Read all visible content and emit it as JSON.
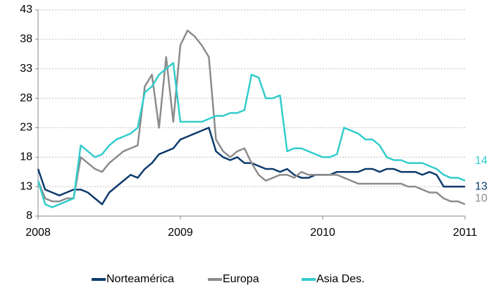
{
  "chart_data": {
    "type": "line",
    "x": [
      2008,
      2008.05,
      2008.1,
      2008.15,
      2008.2,
      2008.25,
      2008.3,
      2008.35,
      2008.4,
      2008.45,
      2008.5,
      2008.55,
      2008.6,
      2008.65,
      2008.7,
      2008.75,
      2008.8,
      2008.85,
      2008.9,
      2008.95,
      2009,
      2009.05,
      2009.1,
      2009.15,
      2009.2,
      2009.25,
      2009.3,
      2009.35,
      2009.4,
      2009.45,
      2009.5,
      2009.55,
      2009.6,
      2009.65,
      2009.7,
      2009.75,
      2009.8,
      2009.85,
      2009.9,
      2009.95,
      2010,
      2010.05,
      2010.1,
      2010.15,
      2010.2,
      2010.25,
      2010.3,
      2010.35,
      2010.4,
      2010.45,
      2010.5,
      2010.55,
      2010.6,
      2010.65,
      2010.7,
      2010.75,
      2010.8,
      2010.85,
      2010.9,
      2010.95,
      2011
    ],
    "series": [
      {
        "name": "Norteamérica",
        "color": "#0d3a6b",
        "values": [
          16,
          12.5,
          12,
          11.5,
          12,
          12.5,
          12.5,
          12,
          11,
          10,
          12,
          13,
          14,
          15,
          14.5,
          16,
          17,
          18.5,
          19,
          19.5,
          21,
          21.5,
          22,
          22.5,
          23,
          19,
          18,
          17.5,
          18,
          17,
          17,
          16.5,
          16,
          16,
          15.5,
          16,
          15,
          14.5,
          14.5,
          15,
          15,
          15,
          15.5,
          15.5,
          15.5,
          15.5,
          16,
          16,
          15.5,
          16,
          16,
          15.5,
          15.5,
          15.5,
          15,
          15.5,
          15,
          13,
          13,
          13,
          13
        ]
      },
      {
        "name": "Europa",
        "color": "#8c8c8c",
        "values": [
          14,
          11,
          10.5,
          10.5,
          11,
          11,
          18,
          17,
          16,
          15.5,
          17,
          18,
          19,
          19.5,
          20,
          30,
          32,
          23,
          35,
          24,
          37,
          39.5,
          38.5,
          37,
          35,
          21,
          19,
          18,
          19,
          19.5,
          17,
          15,
          14,
          14.5,
          15,
          15,
          14.5,
          15.5,
          15,
          15,
          15,
          15,
          15,
          14.5,
          14,
          13.5,
          13.5,
          13.5,
          13.5,
          13.5,
          13.5,
          13.5,
          13,
          13,
          12.5,
          12,
          12,
          11,
          10.5,
          10.5,
          10
        ]
      },
      {
        "name": "Asia Des.",
        "color": "#33cccc",
        "values": [
          14,
          10,
          9.5,
          10,
          10.5,
          11,
          20,
          19,
          18,
          18.5,
          20,
          21,
          21.5,
          22,
          23,
          29,
          30,
          32,
          33,
          34,
          24,
          24,
          24,
          24,
          24.5,
          25,
          25,
          25.5,
          25.5,
          26,
          32,
          31.5,
          28,
          28,
          28.5,
          19,
          19.5,
          19.5,
          19,
          18.5,
          18,
          18,
          18.5,
          23,
          22.5,
          22,
          21,
          21,
          20,
          18,
          17.5,
          17.5,
          17,
          17,
          17,
          16.5,
          16,
          15,
          14.5,
          14.5,
          14
        ]
      }
    ],
    "xlim": [
      2008,
      2011
    ],
    "xticks": [
      2008,
      2009,
      2010,
      2011
    ],
    "ylim": [
      8,
      43
    ],
    "yticks": [
      8,
      13,
      18,
      23,
      28,
      33,
      38,
      43
    ],
    "grid": true
  }
}
